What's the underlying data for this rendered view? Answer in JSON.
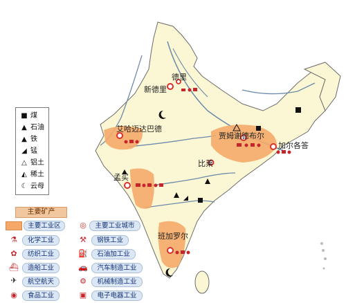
{
  "cities": {
    "delhi": "德里",
    "new_delhi": "新德里",
    "ahmedabad": "艾哈迈达巴德",
    "jamshedpur": "贾姆谢德布尔",
    "kolkata": "加尔各答",
    "mumbai": "孟买",
    "bhilai": "比莱",
    "bangalore": "班加罗尔"
  },
  "resource_legend": [
    {
      "icon": "coal-icon",
      "glyph": "■",
      "label": "煤"
    },
    {
      "icon": "oil-icon",
      "glyph": "▲",
      "label": "石油"
    },
    {
      "icon": "iron-icon",
      "glyph": "▲",
      "label": "铁"
    },
    {
      "icon": "manganese-icon",
      "glyph": "◢",
      "label": "锰"
    },
    {
      "icon": "bauxite-icon",
      "glyph": "⚠",
      "label": "铝土"
    },
    {
      "icon": "rare-earth-icon",
      "glyph": "◭",
      "label": "稀土"
    },
    {
      "icon": "mica-icon",
      "glyph": "☾",
      "label": "云母"
    }
  ],
  "legend": {
    "mining_label": "主要矿产",
    "industrial_zone_label": "主要工业区",
    "industrial_city_label": "主要工业城市"
  },
  "industries": [
    {
      "icon": "chemical-icon",
      "label": "化学工业"
    },
    {
      "icon": "steel-icon",
      "label": "钢铁工业"
    },
    {
      "icon": "textile-icon",
      "label": "纺织工业"
    },
    {
      "icon": "petroleum-icon",
      "label": "石油加工业"
    },
    {
      "icon": "shipbuilding-icon",
      "label": "造船工业"
    },
    {
      "icon": "automobile-icon",
      "label": "汽车制造工业"
    },
    {
      "icon": "aerospace-icon",
      "label": "航空航天"
    },
    {
      "icon": "machinery-icon",
      "label": "机械制造工业"
    },
    {
      "icon": "food-icon",
      "label": "食品工业"
    },
    {
      "icon": "electronics-icon",
      "label": "电子电器工业"
    }
  ],
  "colors": {
    "land": "#fbf6d3",
    "industrial_zone": "#f5a968",
    "border": "#6b6b6b",
    "river": "#6a8aaa",
    "city_marker": "#d9302a",
    "label_pill": "#dbe7f4"
  }
}
